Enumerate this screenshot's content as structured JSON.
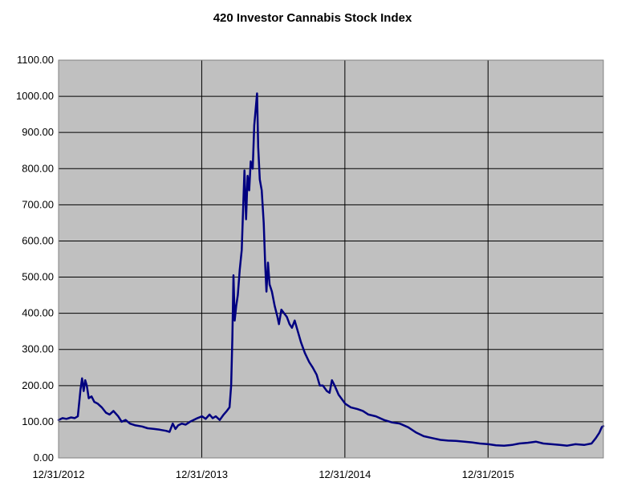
{
  "chart_data": {
    "type": "line",
    "title": "420 Investor Cannabis Stock Index",
    "xlabel": "",
    "ylabel": "",
    "ylim": [
      0,
      1100
    ],
    "yticks": [
      "0.00",
      "100.00",
      "200.00",
      "300.00",
      "400.00",
      "500.00",
      "600.00",
      "700.00",
      "800.00",
      "900.00",
      "1000.00",
      "1100.00"
    ],
    "xticks": [
      "12/31/2012",
      "12/31/2013",
      "12/31/2014",
      "12/31/2015"
    ],
    "xlim": [
      "2012-12-31",
      "2016-10-20"
    ],
    "grid": true,
    "legend": "none",
    "colors": {
      "line": "#000080",
      "plot_bg": "#c0c0c0",
      "grid": "#000000"
    },
    "series": [
      {
        "values": [
          [
            "2012-12-31",
            105
          ],
          [
            "2013-01-10",
            110
          ],
          [
            "2013-01-20",
            108
          ],
          [
            "2013-02-01",
            112
          ],
          [
            "2013-02-10",
            110
          ],
          [
            "2013-02-18",
            115
          ],
          [
            "2013-02-25",
            190
          ],
          [
            "2013-03-01",
            220
          ],
          [
            "2013-03-05",
            185
          ],
          [
            "2013-03-09",
            215
          ],
          [
            "2013-03-13",
            200
          ],
          [
            "2013-03-18",
            165
          ],
          [
            "2013-03-25",
            170
          ],
          [
            "2013-04-01",
            155
          ],
          [
            "2013-04-10",
            150
          ],
          [
            "2013-04-20",
            140
          ],
          [
            "2013-05-01",
            125
          ],
          [
            "2013-05-10",
            120
          ],
          [
            "2013-05-20",
            130
          ],
          [
            "2013-06-01",
            115
          ],
          [
            "2013-06-10",
            100
          ],
          [
            "2013-06-20",
            105
          ],
          [
            "2013-07-01",
            95
          ],
          [
            "2013-07-15",
            90
          ],
          [
            "2013-08-01",
            87
          ],
          [
            "2013-08-15",
            82
          ],
          [
            "2013-09-01",
            80
          ],
          [
            "2013-09-15",
            78
          ],
          [
            "2013-10-01",
            75
          ],
          [
            "2013-10-10",
            72
          ],
          [
            "2013-10-18",
            95
          ],
          [
            "2013-10-25",
            80
          ],
          [
            "2013-11-01",
            90
          ],
          [
            "2013-11-10",
            95
          ],
          [
            "2013-11-20",
            92
          ],
          [
            "2013-12-01",
            100
          ],
          [
            "2013-12-10",
            105
          ],
          [
            "2013-12-20",
            110
          ],
          [
            "2014-01-01",
            115
          ],
          [
            "2014-01-10",
            108
          ],
          [
            "2014-01-20",
            120
          ],
          [
            "2014-01-28",
            110
          ],
          [
            "2014-02-05",
            115
          ],
          [
            "2014-02-15",
            105
          ],
          [
            "2014-02-25",
            120
          ],
          [
            "2014-03-05",
            130
          ],
          [
            "2014-03-12",
            140
          ],
          [
            "2014-03-16",
            200
          ],
          [
            "2014-03-19",
            330
          ],
          [
            "2014-03-22",
            505
          ],
          [
            "2014-03-25",
            380
          ],
          [
            "2014-03-29",
            420
          ],
          [
            "2014-04-02",
            450
          ],
          [
            "2014-04-07",
            520
          ],
          [
            "2014-04-12",
            575
          ],
          [
            "2014-04-16",
            700
          ],
          [
            "2014-04-19",
            795
          ],
          [
            "2014-04-23",
            660
          ],
          [
            "2014-04-27",
            780
          ],
          [
            "2014-05-01",
            740
          ],
          [
            "2014-05-05",
            820
          ],
          [
            "2014-05-10",
            800
          ],
          [
            "2014-05-14",
            920
          ],
          [
            "2014-05-18",
            970
          ],
          [
            "2014-05-21",
            1008
          ],
          [
            "2014-05-24",
            860
          ],
          [
            "2014-05-28",
            770
          ],
          [
            "2014-06-02",
            740
          ],
          [
            "2014-06-07",
            650
          ],
          [
            "2014-06-11",
            530
          ],
          [
            "2014-06-14",
            460
          ],
          [
            "2014-06-18",
            540
          ],
          [
            "2014-06-22",
            480
          ],
          [
            "2014-06-28",
            460
          ],
          [
            "2014-07-05",
            420
          ],
          [
            "2014-07-12",
            390
          ],
          [
            "2014-07-16",
            370
          ],
          [
            "2014-07-22",
            410
          ],
          [
            "2014-07-29",
            400
          ],
          [
            "2014-08-05",
            390
          ],
          [
            "2014-08-12",
            370
          ],
          [
            "2014-08-18",
            360
          ],
          [
            "2014-08-25",
            380
          ],
          [
            "2014-09-02",
            350
          ],
          [
            "2014-09-10",
            320
          ],
          [
            "2014-09-20",
            290
          ],
          [
            "2014-10-01",
            265
          ],
          [
            "2014-10-10",
            250
          ],
          [
            "2014-10-20",
            230
          ],
          [
            "2014-10-28",
            200
          ],
          [
            "2014-11-05",
            200
          ],
          [
            "2014-11-15",
            185
          ],
          [
            "2014-11-22",
            180
          ],
          [
            "2014-11-28",
            215
          ],
          [
            "2014-12-05",
            200
          ],
          [
            "2014-12-15",
            175
          ],
          [
            "2015-01-01",
            150
          ],
          [
            "2015-01-15",
            140
          ],
          [
            "2015-02-01",
            135
          ],
          [
            "2015-02-15",
            130
          ],
          [
            "2015-03-01",
            120
          ],
          [
            "2015-03-20",
            115
          ],
          [
            "2015-04-10",
            105
          ],
          [
            "2015-05-01",
            98
          ],
          [
            "2015-05-20",
            95
          ],
          [
            "2015-06-10",
            85
          ],
          [
            "2015-07-01",
            70
          ],
          [
            "2015-07-20",
            60
          ],
          [
            "2015-08-10",
            55
          ],
          [
            "2015-09-01",
            50
          ],
          [
            "2015-09-20",
            48
          ],
          [
            "2015-10-10",
            47
          ],
          [
            "2015-11-01",
            45
          ],
          [
            "2015-11-20",
            43
          ],
          [
            "2015-12-10",
            40
          ],
          [
            "2016-01-01",
            38
          ],
          [
            "2016-01-20",
            35
          ],
          [
            "2016-02-10",
            34
          ],
          [
            "2016-03-01",
            36
          ],
          [
            "2016-03-20",
            40
          ],
          [
            "2016-04-10",
            42
          ],
          [
            "2016-05-01",
            45
          ],
          [
            "2016-05-20",
            40
          ],
          [
            "2016-06-10",
            38
          ],
          [
            "2016-07-01",
            36
          ],
          [
            "2016-07-20",
            34
          ],
          [
            "2016-08-10",
            38
          ],
          [
            "2016-09-01",
            36
          ],
          [
            "2016-09-20",
            40
          ],
          [
            "2016-10-01",
            55
          ],
          [
            "2016-10-10",
            70
          ],
          [
            "2016-10-16",
            85
          ],
          [
            "2016-10-20",
            88
          ]
        ]
      }
    ]
  }
}
